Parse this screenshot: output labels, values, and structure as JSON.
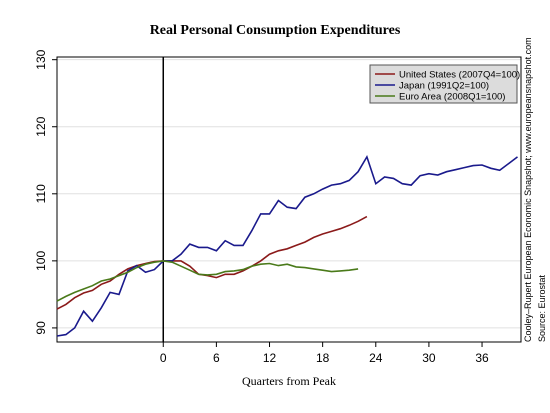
{
  "chart_data": {
    "type": "line",
    "title": "Real Personal Consumption Expenditures",
    "x_label": "Quarters from Peak",
    "side_notes": [
      "Cooley–Rupert European Economic Snapshot; www.europeansnapshot.com",
      "Source: Eurostat"
    ],
    "xlim": [
      -12,
      40.4
    ],
    "xticks": [
      0,
      6,
      12,
      18,
      24,
      30,
      36
    ],
    "ylim": [
      87.9,
      130.4
    ],
    "yticks": [
      90,
      100,
      110,
      120,
      130
    ],
    "grid": true,
    "legend": "upper right",
    "vline": 0,
    "series": [
      {
        "name": "United States (2007Q4=100)",
        "color": "#8b1a1a",
        "x": [
          -12,
          -11,
          -10,
          -9,
          -8,
          -7,
          -6,
          -5,
          -4,
          -3,
          -2,
          -1,
          0,
          1,
          2,
          3,
          4,
          5,
          6,
          7,
          8,
          9,
          10,
          11,
          12,
          13,
          14,
          15,
          16,
          17,
          18,
          19,
          20,
          21,
          22,
          23
        ],
        "values": [
          92.8,
          93.5,
          94.5,
          95.2,
          95.6,
          96.5,
          97,
          98,
          98.8,
          99.3,
          99.6,
          99.9,
          100,
          100,
          100,
          99.2,
          98,
          97.8,
          97.5,
          98,
          98,
          98.5,
          99.2,
          100,
          101,
          101.5,
          101.8,
          102.3,
          102.8,
          103.5,
          104,
          104.4,
          104.8,
          105.3,
          105.9,
          106.6
        ]
      },
      {
        "name": "Japan (1991Q2=100)",
        "color": "#1a1a8c",
        "x": [
          -12,
          -11,
          -10,
          -9,
          -8,
          -7,
          -6,
          -5,
          -4,
          -3,
          -2,
          -1,
          0,
          1,
          2,
          3,
          4,
          5,
          6,
          7,
          8,
          9,
          10,
          11,
          12,
          13,
          14,
          15,
          16,
          17,
          18,
          19,
          20,
          21,
          22,
          23,
          24,
          25,
          26,
          27,
          28,
          29,
          30,
          31,
          32,
          33,
          34,
          35,
          36,
          37,
          38,
          39,
          40
        ],
        "values": [
          88.8,
          89,
          90,
          92.5,
          91,
          93,
          95.3,
          95,
          98.5,
          99.3,
          98.3,
          98.7,
          100,
          100,
          101,
          102.5,
          102,
          102,
          101.5,
          103,
          102.3,
          102.3,
          104.5,
          107,
          107,
          109,
          108,
          107.8,
          109.5,
          110,
          110.7,
          111.3,
          111.5,
          112,
          113.3,
          115.5,
          111.5,
          112.5,
          112.3,
          111.5,
          111.3,
          112.7,
          113,
          112.8,
          113.3,
          113.6,
          113.9,
          114.2,
          114.3,
          113.8,
          113.5,
          114.5,
          115.5
        ]
      },
      {
        "name": "Euro Area (2008Q1=100)",
        "color": "#4a7a1a",
        "x": [
          -12,
          -11,
          -10,
          -9,
          -8,
          -7,
          -6,
          -5,
          -4,
          -3,
          -2,
          -1,
          0,
          1,
          2,
          3,
          4,
          5,
          6,
          7,
          8,
          9,
          10,
          11,
          12,
          13,
          14,
          15,
          16,
          17,
          18,
          19,
          20,
          21,
          22
        ],
        "values": [
          94,
          94.7,
          95.3,
          95.8,
          96.3,
          97,
          97.3,
          97.8,
          98.3,
          99,
          99.5,
          99.8,
          100,
          99.8,
          99.2,
          98.6,
          98,
          97.9,
          98,
          98.4,
          98.5,
          98.7,
          99.2,
          99.5,
          99.6,
          99.3,
          99.5,
          99.1,
          99,
          98.8,
          98.6,
          98.4,
          98.5,
          98.6,
          98.8
        ]
      }
    ]
  }
}
